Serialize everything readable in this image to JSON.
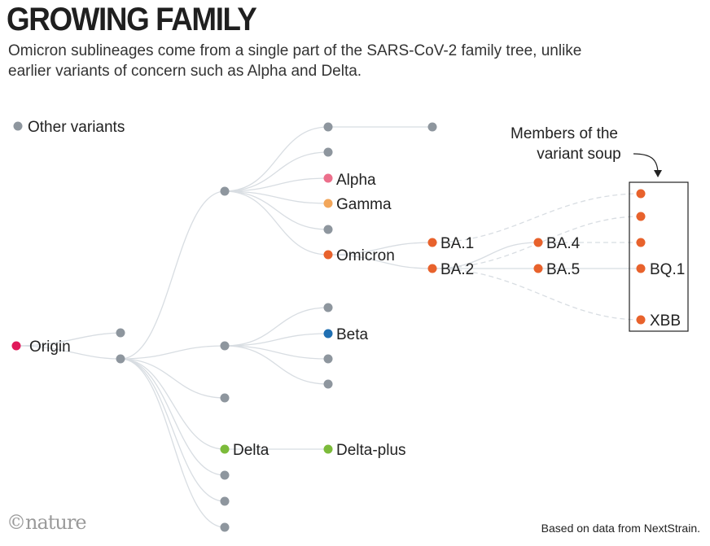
{
  "header": {
    "title": "GROWING FAMILY",
    "subtitle": "Omicron sublineages come from a single part of the SARS-CoV-2 family tree, unlike earlier variants of concern such as Alpha and Delta."
  },
  "legend": {
    "label": "Other variants",
    "color": "#8e969e"
  },
  "colors": {
    "origin": "#e0195a",
    "alpha": "#ec6f8b",
    "gamma": "#f2a65a",
    "omicron": "#e8622c",
    "beta": "#1f6fb2",
    "delta": "#7cbb3a",
    "other": "#8e969e",
    "line": "#d8dde2"
  },
  "nodes": {
    "origin": "Origin",
    "alpha": "Alpha",
    "gamma": "Gamma",
    "omicron": "Omicron",
    "ba1": "BA.1",
    "ba2": "BA.2",
    "ba4": "BA.4",
    "ba5": "BA.5",
    "bq1": "BQ.1",
    "xbb": "XBB",
    "beta": "Beta",
    "delta": "Delta",
    "delta_plus": "Delta-plus"
  },
  "annotation": {
    "line1": "Members of the",
    "line2": "variant soup"
  },
  "footer": {
    "logo": "©nature",
    "source": "Based on data from NextStrain."
  }
}
